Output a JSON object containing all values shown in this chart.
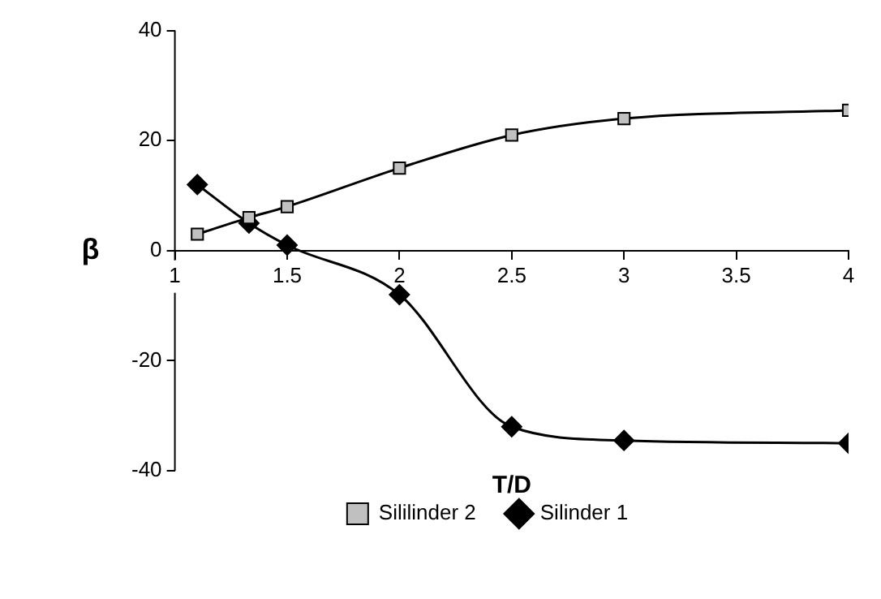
{
  "chart_data": {
    "type": "line",
    "xlabel": "T/D",
    "ylabel": "β",
    "xlim": [
      1,
      4
    ],
    "xticks": [
      1,
      1.5,
      2,
      2.5,
      3,
      3.5,
      4
    ],
    "ylim": [
      -40,
      40
    ],
    "yticks": [
      -40,
      -20,
      0,
      20,
      40
    ],
    "grid": false,
    "legend": "bottom",
    "series": [
      {
        "name": "Silinder 1",
        "color": "#000000",
        "marker": "diamond",
        "x": [
          1.1,
          1.33,
          1.5,
          2,
          2.5,
          3,
          4
        ],
        "values": [
          12,
          5,
          1,
          -8,
          -32,
          -34.5,
          -35
        ]
      },
      {
        "name": "Sililinder 2",
        "color": "#c0c0c0",
        "marker": "square",
        "x": [
          1.1,
          1.33,
          1.5,
          2,
          2.5,
          3,
          4
        ],
        "values": [
          3,
          6,
          8,
          15,
          21,
          24,
          25.5
        ]
      }
    ]
  }
}
